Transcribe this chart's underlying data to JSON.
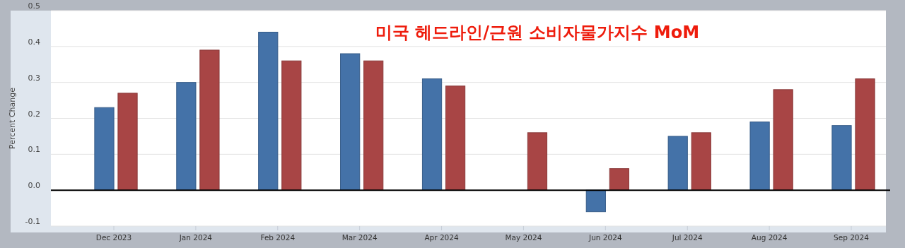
{
  "chart_data": {
    "type": "bar",
    "title": "미국 헤드라인/근원 소비자물가지수 MoM",
    "ylabel": "Percent Change",
    "categories": [
      "Dec 2023",
      "Jan 2024",
      "Feb 2024",
      "Mar 2024",
      "Apr 2024",
      "May 2024",
      "Jun 2024",
      "Jul 2024",
      "Aug 2024",
      "Sep 2024"
    ],
    "series": [
      {
        "color": "#4472a8",
        "values": [
          0.23,
          0.3,
          0.44,
          0.38,
          0.31,
          0.0,
          -0.06,
          0.15,
          0.19,
          0.18
        ]
      },
      {
        "color": "#a84545",
        "values": [
          0.27,
          0.39,
          0.36,
          0.36,
          0.29,
          0.16,
          0.06,
          0.16,
          0.28,
          0.31
        ]
      }
    ],
    "ylim": [
      -0.1,
      0.5
    ],
    "yticks": [
      {
        "value": -0.1,
        "label": "-0.1"
      },
      {
        "value": 0,
        "label": "0.0"
      },
      {
        "value": 0.1,
        "label": "0.1"
      },
      {
        "value": 0.2,
        "label": "0.2"
      },
      {
        "value": 0.3,
        "label": "0.3"
      },
      {
        "value": 0.4,
        "label": "0.4"
      },
      {
        "value": 0.5,
        "label": "0.5"
      }
    ],
    "grid": "y"
  }
}
